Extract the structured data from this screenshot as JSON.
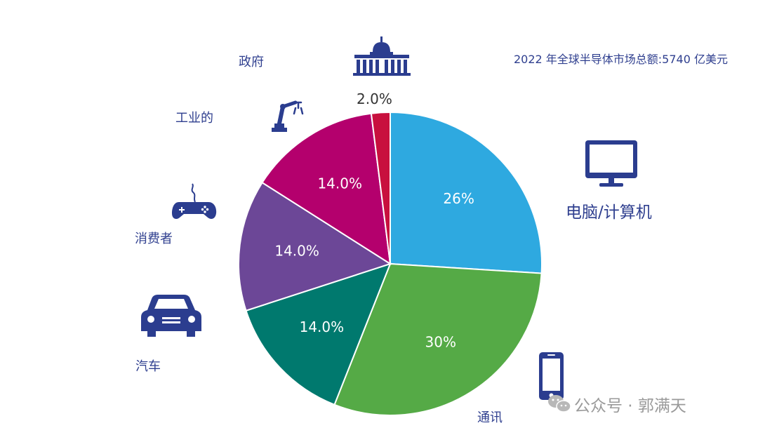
{
  "chart_data": {
    "type": "pie",
    "title": "2022 年全球半导体市场总额:5740 亿美元",
    "start": "12 o'clock",
    "direction": "clockwise",
    "slices": [
      {
        "label": "电脑/计算机",
        "value": 26,
        "value_label": "26%",
        "color": "#2ea9e0",
        "icon": "monitor-icon",
        "label_position": "inside"
      },
      {
        "label": "通讯",
        "value": 30,
        "value_label": "30%",
        "color": "#55aa46",
        "icon": "smartphone-icon",
        "label_position": "inside"
      },
      {
        "label": "汽车",
        "value": 14,
        "value_label": "14.0%",
        "color": "#00796e",
        "icon": "car-icon",
        "label_position": "inside"
      },
      {
        "label": "消费者",
        "value": 14,
        "value_label": "14.0%",
        "color": "#6c4797",
        "icon": "gamepad-icon",
        "label_position": "inside"
      },
      {
        "label": "工业的",
        "value": 14,
        "value_label": "14.0%",
        "color": "#b4006d",
        "icon": "robot-arm-icon",
        "label_position": "inside"
      },
      {
        "label": "政府",
        "value": 2,
        "value_label": "2.0%",
        "color": "#c8103e",
        "icon": "capitol-building-icon",
        "label_position": "outside"
      }
    ]
  },
  "watermark": {
    "text": "公众号 · 郭满天",
    "icon": "wechat-icon"
  },
  "colors": {
    "label_blue": "#2f3f8f",
    "icon_navy": "#2b3d8f"
  }
}
